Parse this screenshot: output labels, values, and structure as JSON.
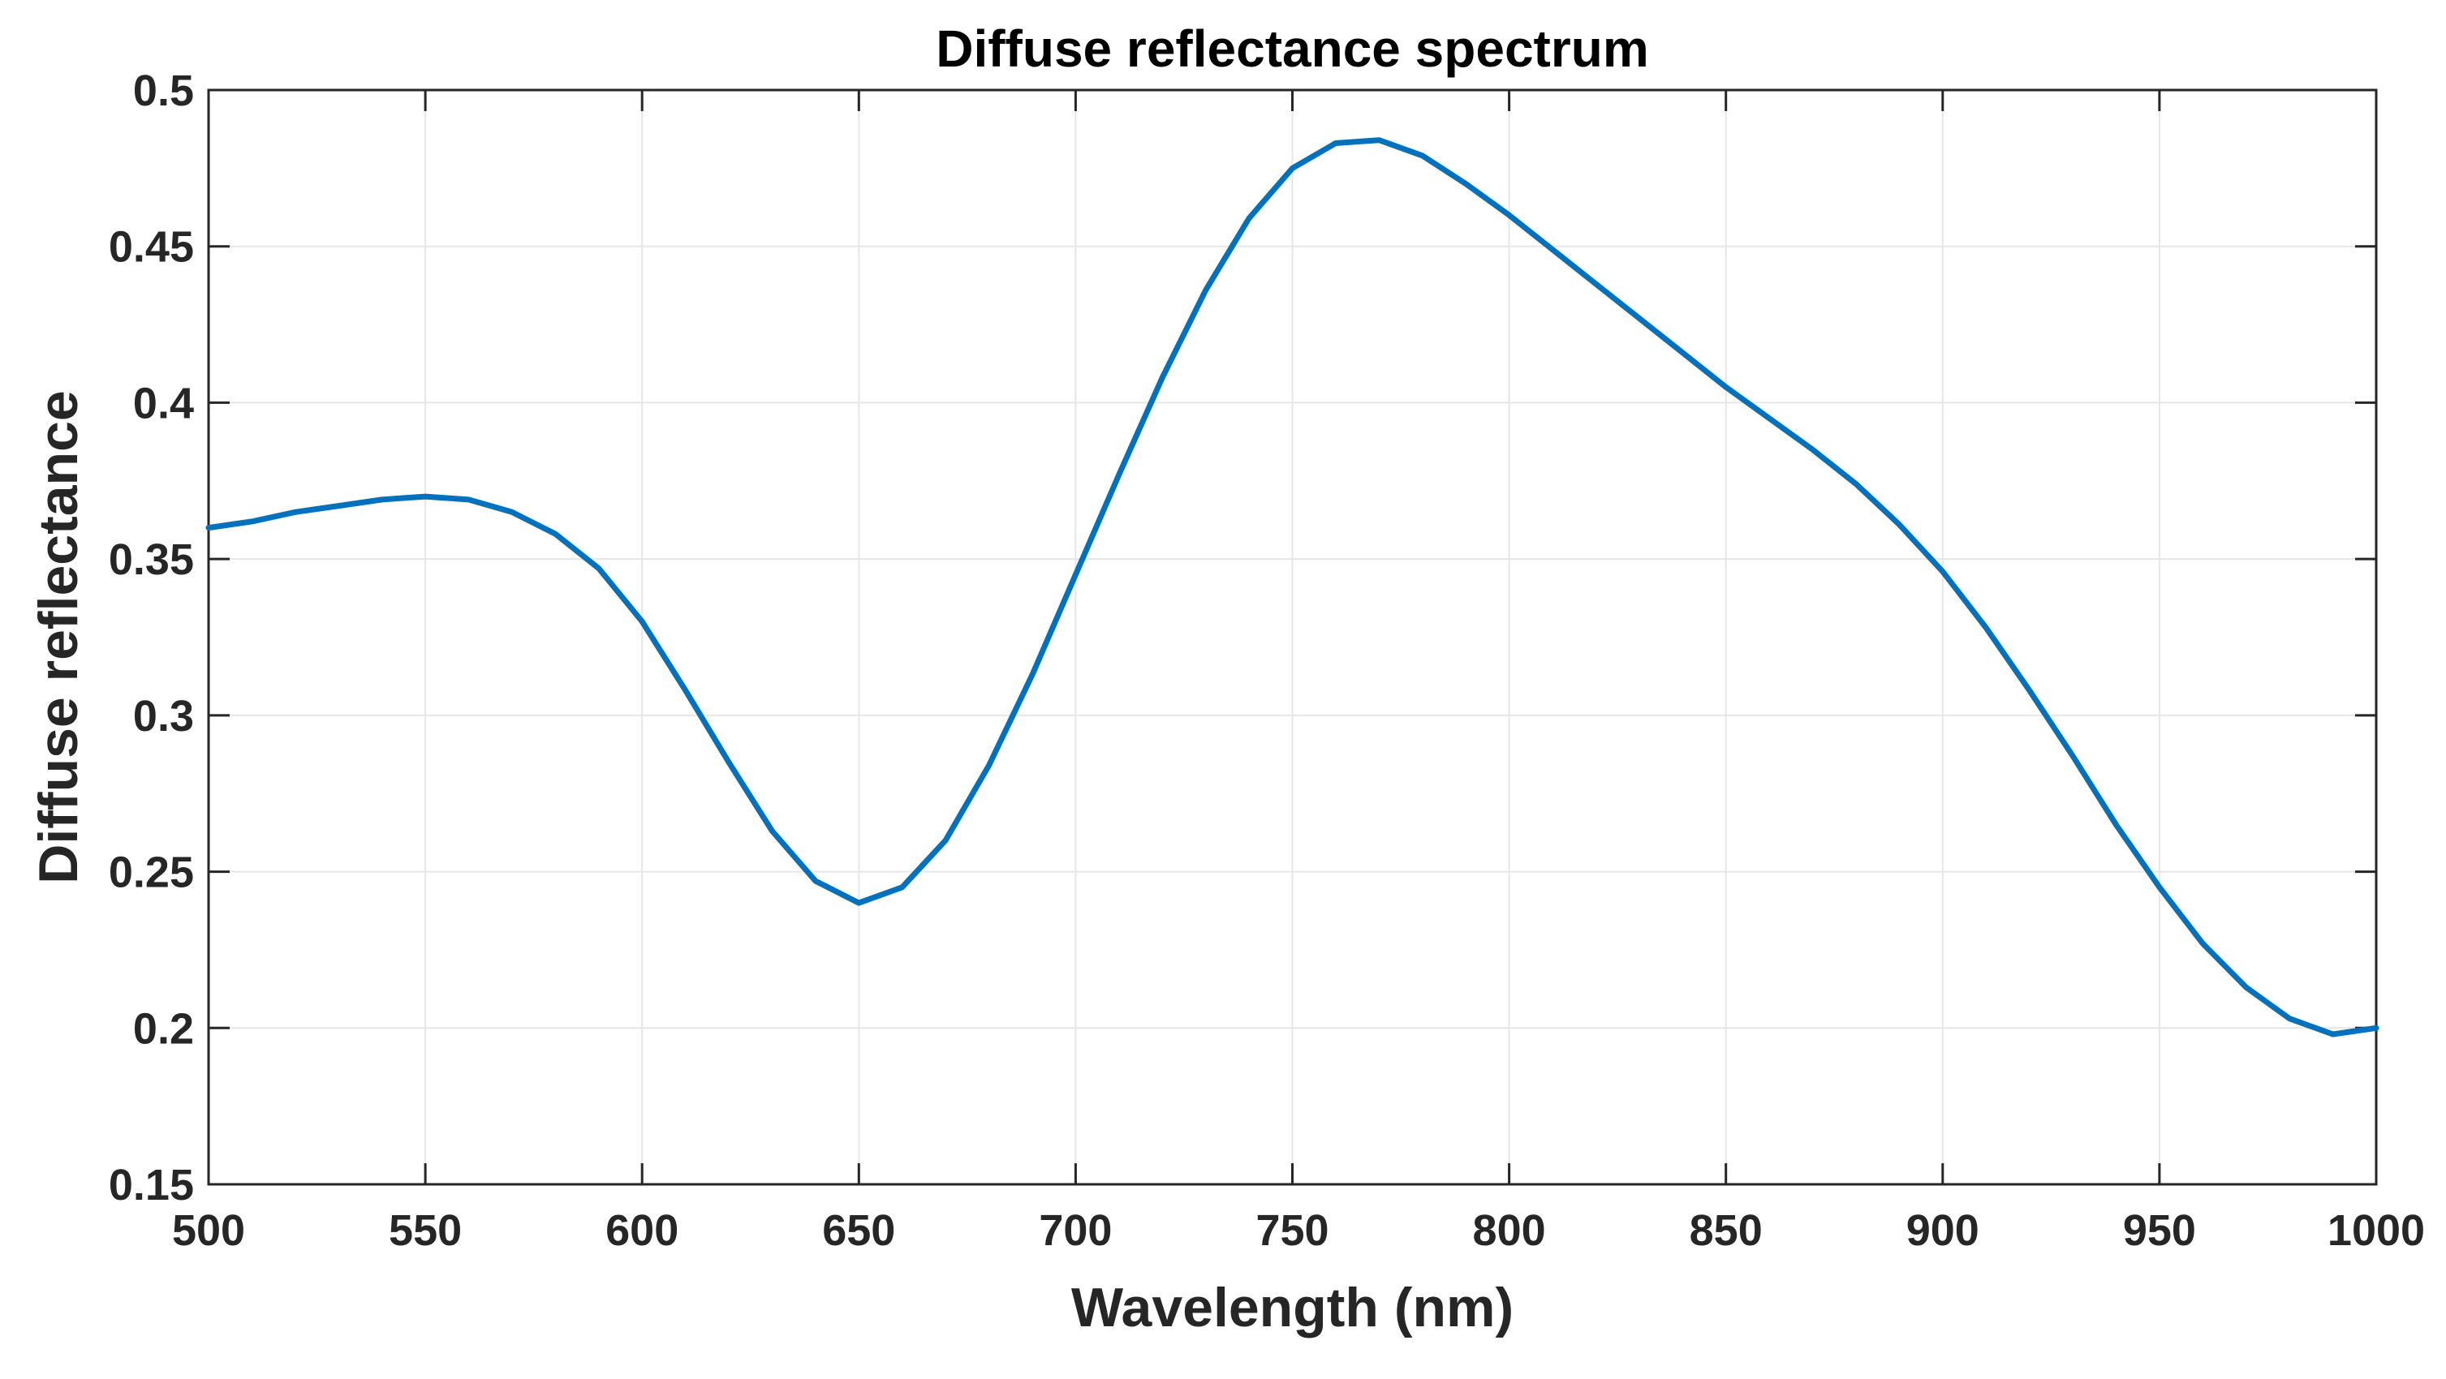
{
  "chart_data": {
    "type": "line",
    "title": "Diffuse reflectance spectrum",
    "xlabel": "Wavelength (nm)",
    "ylabel": "Diffuse reflectance",
    "xlim": [
      500,
      1000
    ],
    "ylim": [
      0.15,
      0.5
    ],
    "xticks": [
      500,
      550,
      600,
      650,
      700,
      750,
      800,
      850,
      900,
      950,
      1000
    ],
    "yticks": [
      0.15,
      0.2,
      0.25,
      0.3,
      0.35,
      0.4,
      0.45,
      0.5
    ],
    "xtick_labels": [
      "500",
      "550",
      "600",
      "650",
      "700",
      "750",
      "800",
      "850",
      "900",
      "950",
      "1000"
    ],
    "ytick_labels": [
      "0.15",
      "0.2",
      "0.25",
      "0.3",
      "0.35",
      "0.4",
      "0.45",
      "0.5"
    ],
    "grid": true,
    "series": [
      {
        "name": "Diffuse reflectance",
        "color": "#0072BD",
        "x": [
          500,
          510,
          520,
          530,
          540,
          550,
          560,
          570,
          580,
          590,
          600,
          610,
          620,
          630,
          640,
          650,
          660,
          670,
          680,
          690,
          700,
          710,
          720,
          730,
          740,
          750,
          760,
          770,
          780,
          790,
          800,
          810,
          820,
          830,
          840,
          850,
          860,
          870,
          880,
          890,
          900,
          910,
          920,
          930,
          940,
          950,
          960,
          970,
          980,
          990,
          1000
        ],
        "y": [
          0.36,
          0.362,
          0.365,
          0.367,
          0.369,
          0.37,
          0.369,
          0.365,
          0.358,
          0.347,
          0.33,
          0.308,
          0.285,
          0.263,
          0.247,
          0.24,
          0.245,
          0.26,
          0.284,
          0.313,
          0.345,
          0.377,
          0.408,
          0.436,
          0.459,
          0.475,
          0.483,
          0.484,
          0.479,
          0.47,
          0.46,
          0.449,
          0.438,
          0.427,
          0.416,
          0.405,
          0.395,
          0.385,
          0.374,
          0.361,
          0.346,
          0.328,
          0.308,
          0.287,
          0.265,
          0.245,
          0.227,
          0.213,
          0.203,
          0.198,
          0.2
        ]
      }
    ]
  }
}
